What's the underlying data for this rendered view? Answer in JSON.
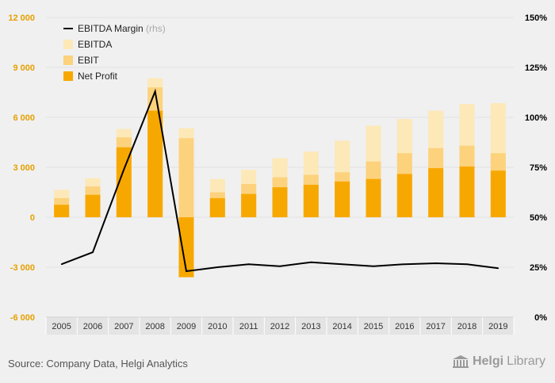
{
  "chart_data": {
    "type": "bar",
    "categories": [
      "2005",
      "2006",
      "2007",
      "2008",
      "2009",
      "2010",
      "2011",
      "2012",
      "2013",
      "2014",
      "2015",
      "2016",
      "2017",
      "2018",
      "2019"
    ],
    "series": [
      {
        "name": "EBITDA",
        "color": "#fde8b8",
        "values": [
          1650,
          2350,
          5300,
          8350,
          5350,
          2300,
          2850,
          3550,
          3950,
          4600,
          5500,
          5900,
          6400,
          6800,
          6850
        ]
      },
      {
        "name": "EBIT",
        "color": "#fcd27d",
        "values": [
          1150,
          1850,
          4800,
          7800,
          4750,
          1500,
          2000,
          2400,
          2550,
          2700,
          3350,
          3850,
          4150,
          4300,
          3850
        ]
      },
      {
        "name": "Net Profit",
        "color": "#f7a800",
        "values": [
          750,
          1350,
          4200,
          6400,
          -3600,
          1150,
          1400,
          1800,
          1950,
          2150,
          2300,
          2600,
          2950,
          3050,
          2800
        ]
      },
      {
        "name": "EBITDA Margin",
        "axis": "right",
        "color": "#000000",
        "values": [
          26.5,
          32.5,
          74,
          113,
          23,
          25,
          26.5,
          25.5,
          27.5,
          26.5,
          25.5,
          26.5,
          27,
          26.5,
          24.5
        ]
      }
    ],
    "legend": [
      {
        "label": "EBITDA Margin",
        "suffix": "(rhs)",
        "kind": "line",
        "color": "#000000"
      },
      {
        "label": "EBITDA",
        "kind": "box",
        "color": "#fde8b8"
      },
      {
        "label": "EBIT",
        "kind": "box",
        "color": "#fcd27d"
      },
      {
        "label": "Net Profit",
        "kind": "box",
        "color": "#f7a800"
      }
    ],
    "y_left": {
      "min": -6000,
      "max": 12000,
      "ticks": [
        12000,
        9000,
        6000,
        3000,
        0,
        -3000,
        -6000
      ],
      "tick_labels": [
        "12 000",
        "9 000",
        "6 000",
        "3 000",
        "0",
        "-3 000",
        "-6 000"
      ],
      "label_color": "#e6a000"
    },
    "y_right": {
      "min": 0,
      "max": 150,
      "ticks": [
        150,
        125,
        100,
        75,
        50,
        25,
        0
      ],
      "tick_labels": [
        "150%",
        "125%",
        "100%",
        "75%",
        "50%",
        "25%",
        "0%"
      ]
    },
    "title": "",
    "xlabel": "",
    "ylabel": "",
    "legend_position": "top-left"
  },
  "footer": {
    "source": "Source: Company Data, Helgi Analytics",
    "logo_a": "Helgi",
    "logo_b": "Library"
  }
}
